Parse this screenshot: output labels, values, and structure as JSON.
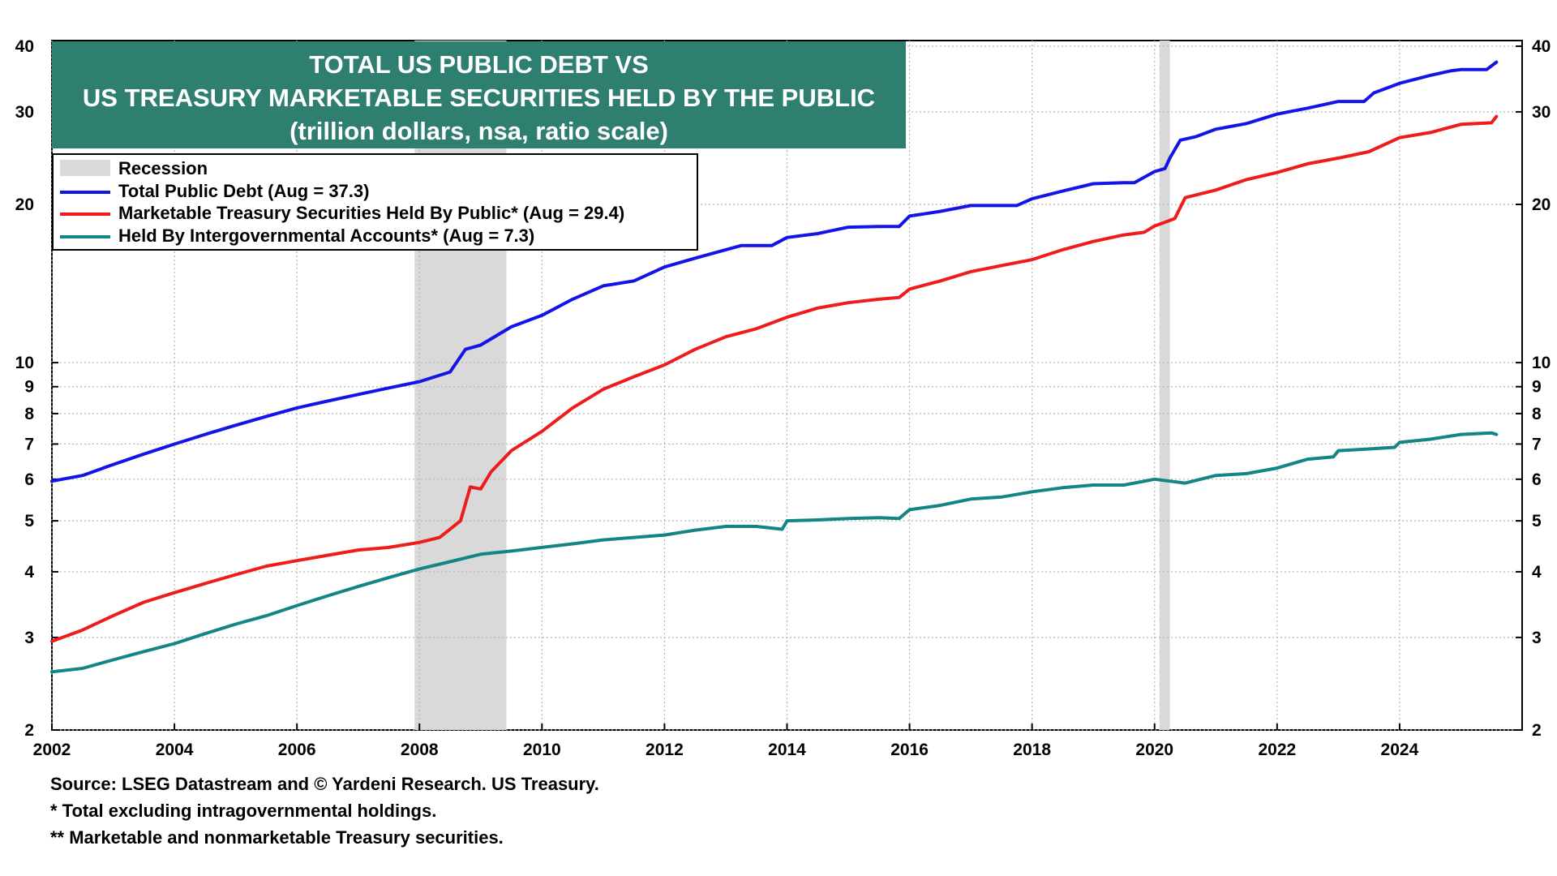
{
  "title": {
    "line1": "TOTAL US PUBLIC DEBT VS",
    "line2": "US TREASURY MARKETABLE SECURITIES HELD BY THE PUBLIC",
    "line3": "(trillion dollars, nsa, ratio scale)"
  },
  "legend": {
    "recession": "Recession",
    "total": "Total Public Debt (Aug = 37.3)",
    "marketable": "Marketable Treasury Securities Held By Public* (Aug = 29.4)",
    "intergov": "Held By Intergovernmental Accounts* (Aug = 7.3)"
  },
  "notes": {
    "source": "Source: LSEG Datastream and © Yardeni Research. US Treasury.",
    "note1": "* Total excluding intragovernmental holdings.",
    "note2": "** Marketable and nonmarketable Treasury securities."
  },
  "colors": {
    "title_bg": "#2f7f70",
    "total": "#1414e6",
    "marketable": "#ee1c1c",
    "intergov": "#138585",
    "recession": "#d9d9d9"
  },
  "chart_data": {
    "type": "line",
    "scale": "log",
    "xlim": [
      2002.0,
      2026.0
    ],
    "ylim": [
      2,
      41
    ],
    "x_ticks": [
      "2002",
      "2004",
      "2006",
      "2008",
      "2010",
      "2012",
      "2014",
      "2016",
      "2018",
      "2020",
      "2022",
      "2024"
    ],
    "y_ticks": [
      "2",
      "3",
      "4",
      "5",
      "6",
      "7",
      "8",
      "9",
      "10",
      "20",
      "30",
      "40"
    ],
    "grid": true,
    "legend_position": "top-left",
    "recessions": [
      [
        2007.92,
        2009.42
      ],
      [
        2020.08,
        2020.25
      ]
    ],
    "series": [
      {
        "name": "Total Public Debt (Aug = 37.3)",
        "key": "total",
        "x": [
          2002.0,
          2002.5,
          2003.0,
          2003.5,
          2004.0,
          2004.5,
          2005.0,
          2005.5,
          2006.0,
          2006.5,
          2007.0,
          2007.5,
          2008.0,
          2008.5,
          2008.75,
          2009.0,
          2009.5,
          2010.0,
          2010.5,
          2011.0,
          2011.5,
          2012.0,
          2012.5,
          2013.0,
          2013.25,
          2013.75,
          2014.0,
          2014.5,
          2015.0,
          2015.5,
          2015.83,
          2016.0,
          2016.5,
          2017.0,
          2017.5,
          2017.75,
          2018.0,
          2018.5,
          2019.0,
          2019.5,
          2019.67,
          2020.0,
          2020.17,
          2020.25,
          2020.42,
          2020.67,
          2021.0,
          2021.5,
          2022.0,
          2022.5,
          2023.0,
          2023.42,
          2023.58,
          2024.0,
          2024.5,
          2024.83,
          2025.0,
          2025.42,
          2025.58
        ],
        "values": [
          5.95,
          6.1,
          6.4,
          6.7,
          7.0,
          7.3,
          7.6,
          7.9,
          8.2,
          8.45,
          8.7,
          8.95,
          9.2,
          9.6,
          10.6,
          10.8,
          11.7,
          12.3,
          13.2,
          14.0,
          14.3,
          15.2,
          15.8,
          16.4,
          16.7,
          16.7,
          17.3,
          17.6,
          18.1,
          18.15,
          18.15,
          19.0,
          19.4,
          19.9,
          19.9,
          19.9,
          20.5,
          21.2,
          21.9,
          22.0,
          22.0,
          23.1,
          23.4,
          24.5,
          26.5,
          26.9,
          27.8,
          28.5,
          29.7,
          30.5,
          31.4,
          31.4,
          32.6,
          34.0,
          35.2,
          35.9,
          36.1,
          36.1,
          37.3
        ]
      },
      {
        "name": "Marketable Treasury Securities Held By Public* (Aug = 29.4)",
        "key": "marketable",
        "x": [
          2002.0,
          2002.5,
          2003.0,
          2003.5,
          2004.0,
          2004.5,
          2005.0,
          2005.5,
          2006.0,
          2006.5,
          2007.0,
          2007.5,
          2008.0,
          2008.33,
          2008.67,
          2008.83,
          2009.0,
          2009.17,
          2009.5,
          2010.0,
          2010.5,
          2011.0,
          2011.5,
          2012.0,
          2012.5,
          2013.0,
          2013.5,
          2014.0,
          2014.5,
          2015.0,
          2015.5,
          2015.83,
          2016.0,
          2016.5,
          2017.0,
          2017.5,
          2018.0,
          2018.5,
          2019.0,
          2019.5,
          2019.83,
          2020.0,
          2020.17,
          2020.33,
          2020.5,
          2021.0,
          2021.5,
          2022.0,
          2022.5,
          2023.0,
          2023.5,
          2024.0,
          2024.5,
          2025.0,
          2025.5,
          2025.58
        ],
        "values": [
          2.95,
          3.1,
          3.3,
          3.5,
          3.65,
          3.8,
          3.95,
          4.1,
          4.2,
          4.3,
          4.4,
          4.45,
          4.55,
          4.65,
          5.0,
          5.8,
          5.75,
          6.2,
          6.8,
          7.4,
          8.2,
          8.9,
          9.4,
          9.9,
          10.6,
          11.2,
          11.6,
          12.2,
          12.7,
          13.0,
          13.2,
          13.3,
          13.8,
          14.3,
          14.9,
          15.3,
          15.7,
          16.4,
          17.0,
          17.5,
          17.7,
          18.2,
          18.5,
          18.8,
          20.6,
          21.3,
          22.3,
          23.0,
          23.9,
          24.5,
          25.2,
          26.8,
          27.4,
          28.4,
          28.6,
          29.4
        ]
      },
      {
        "name": "Held By Intergovernmental Accounts* (Aug = 7.3)",
        "key": "intergov",
        "x": [
          2002.0,
          2002.5,
          2003.0,
          2003.5,
          2004.0,
          2004.5,
          2005.0,
          2005.5,
          2006.0,
          2006.5,
          2007.0,
          2007.5,
          2008.0,
          2008.5,
          2009.0,
          2009.5,
          2010.0,
          2010.5,
          2011.0,
          2011.5,
          2012.0,
          2012.5,
          2013.0,
          2013.5,
          2013.92,
          2014.0,
          2014.5,
          2015.0,
          2015.5,
          2015.83,
          2016.0,
          2016.5,
          2017.0,
          2017.5,
          2018.0,
          2018.5,
          2019.0,
          2019.5,
          2020.0,
          2020.25,
          2020.5,
          2021.0,
          2021.5,
          2022.0,
          2022.5,
          2022.92,
          2023.0,
          2023.5,
          2023.92,
          2024.0,
          2024.5,
          2025.0,
          2025.5,
          2025.58
        ],
        "values": [
          2.58,
          2.62,
          2.72,
          2.82,
          2.92,
          3.05,
          3.18,
          3.3,
          3.45,
          3.6,
          3.75,
          3.9,
          4.05,
          4.18,
          4.32,
          4.38,
          4.45,
          4.52,
          4.6,
          4.65,
          4.7,
          4.8,
          4.88,
          4.88,
          4.82,
          5.0,
          5.02,
          5.05,
          5.07,
          5.05,
          5.25,
          5.35,
          5.5,
          5.55,
          5.68,
          5.78,
          5.85,
          5.85,
          6.0,
          5.95,
          5.9,
          6.1,
          6.15,
          6.3,
          6.55,
          6.62,
          6.8,
          6.85,
          6.9,
          7.05,
          7.15,
          7.3,
          7.35,
          7.3
        ]
      }
    ]
  }
}
